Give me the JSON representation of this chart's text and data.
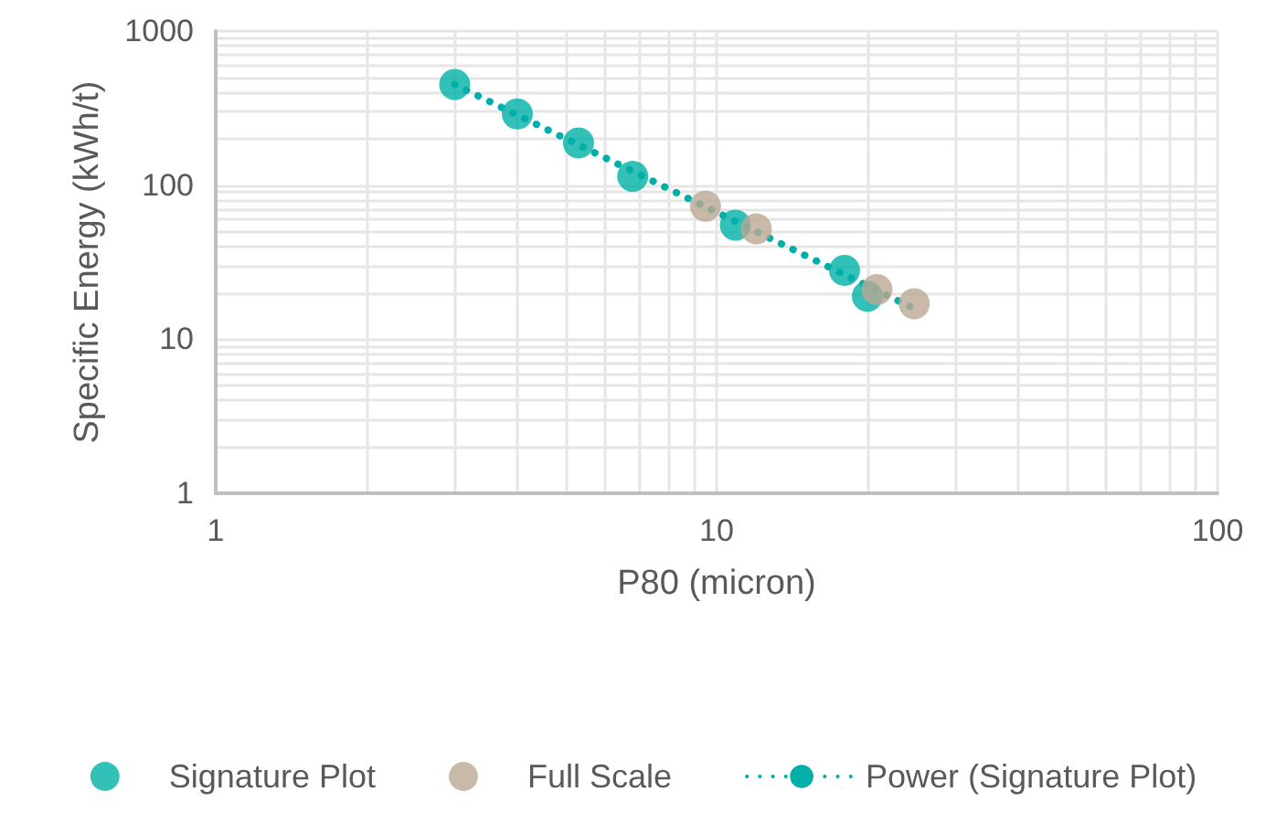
{
  "chart_data": {
    "type": "scatter",
    "xlabel": "P80 (micron)",
    "ylabel": "Specific Energy (kWh/t)",
    "log": "xy",
    "grid": true,
    "legend": "bottom",
    "marker": "circle",
    "xlim": [
      1,
      100
    ],
    "xticks": [
      1,
      10,
      100
    ],
    "ylim": [
      1,
      1000
    ],
    "yticks": [
      1,
      10,
      100,
      1000
    ],
    "series": [
      {
        "name": "Signature Plot",
        "color": "#00b0a8",
        "x": [
          3.0,
          4.0,
          5.3,
          6.8,
          10.9,
          18,
          20
        ],
        "values": [
          450,
          290,
          188,
          114,
          55,
          28,
          19
        ]
      },
      {
        "name": "Full Scale",
        "color": "#bba792",
        "x": [
          9.5,
          12,
          20.9,
          24.8
        ],
        "values": [
          73,
          52,
          21,
          17
        ]
      },
      {
        "name": "Power (Signature Plot)",
        "type": "line",
        "line_style": "dotted",
        "marker": "none",
        "color": "#00b0a8",
        "x": [
          3.0,
          24.6
        ],
        "values": [
          450,
          16
        ]
      }
    ]
  }
}
